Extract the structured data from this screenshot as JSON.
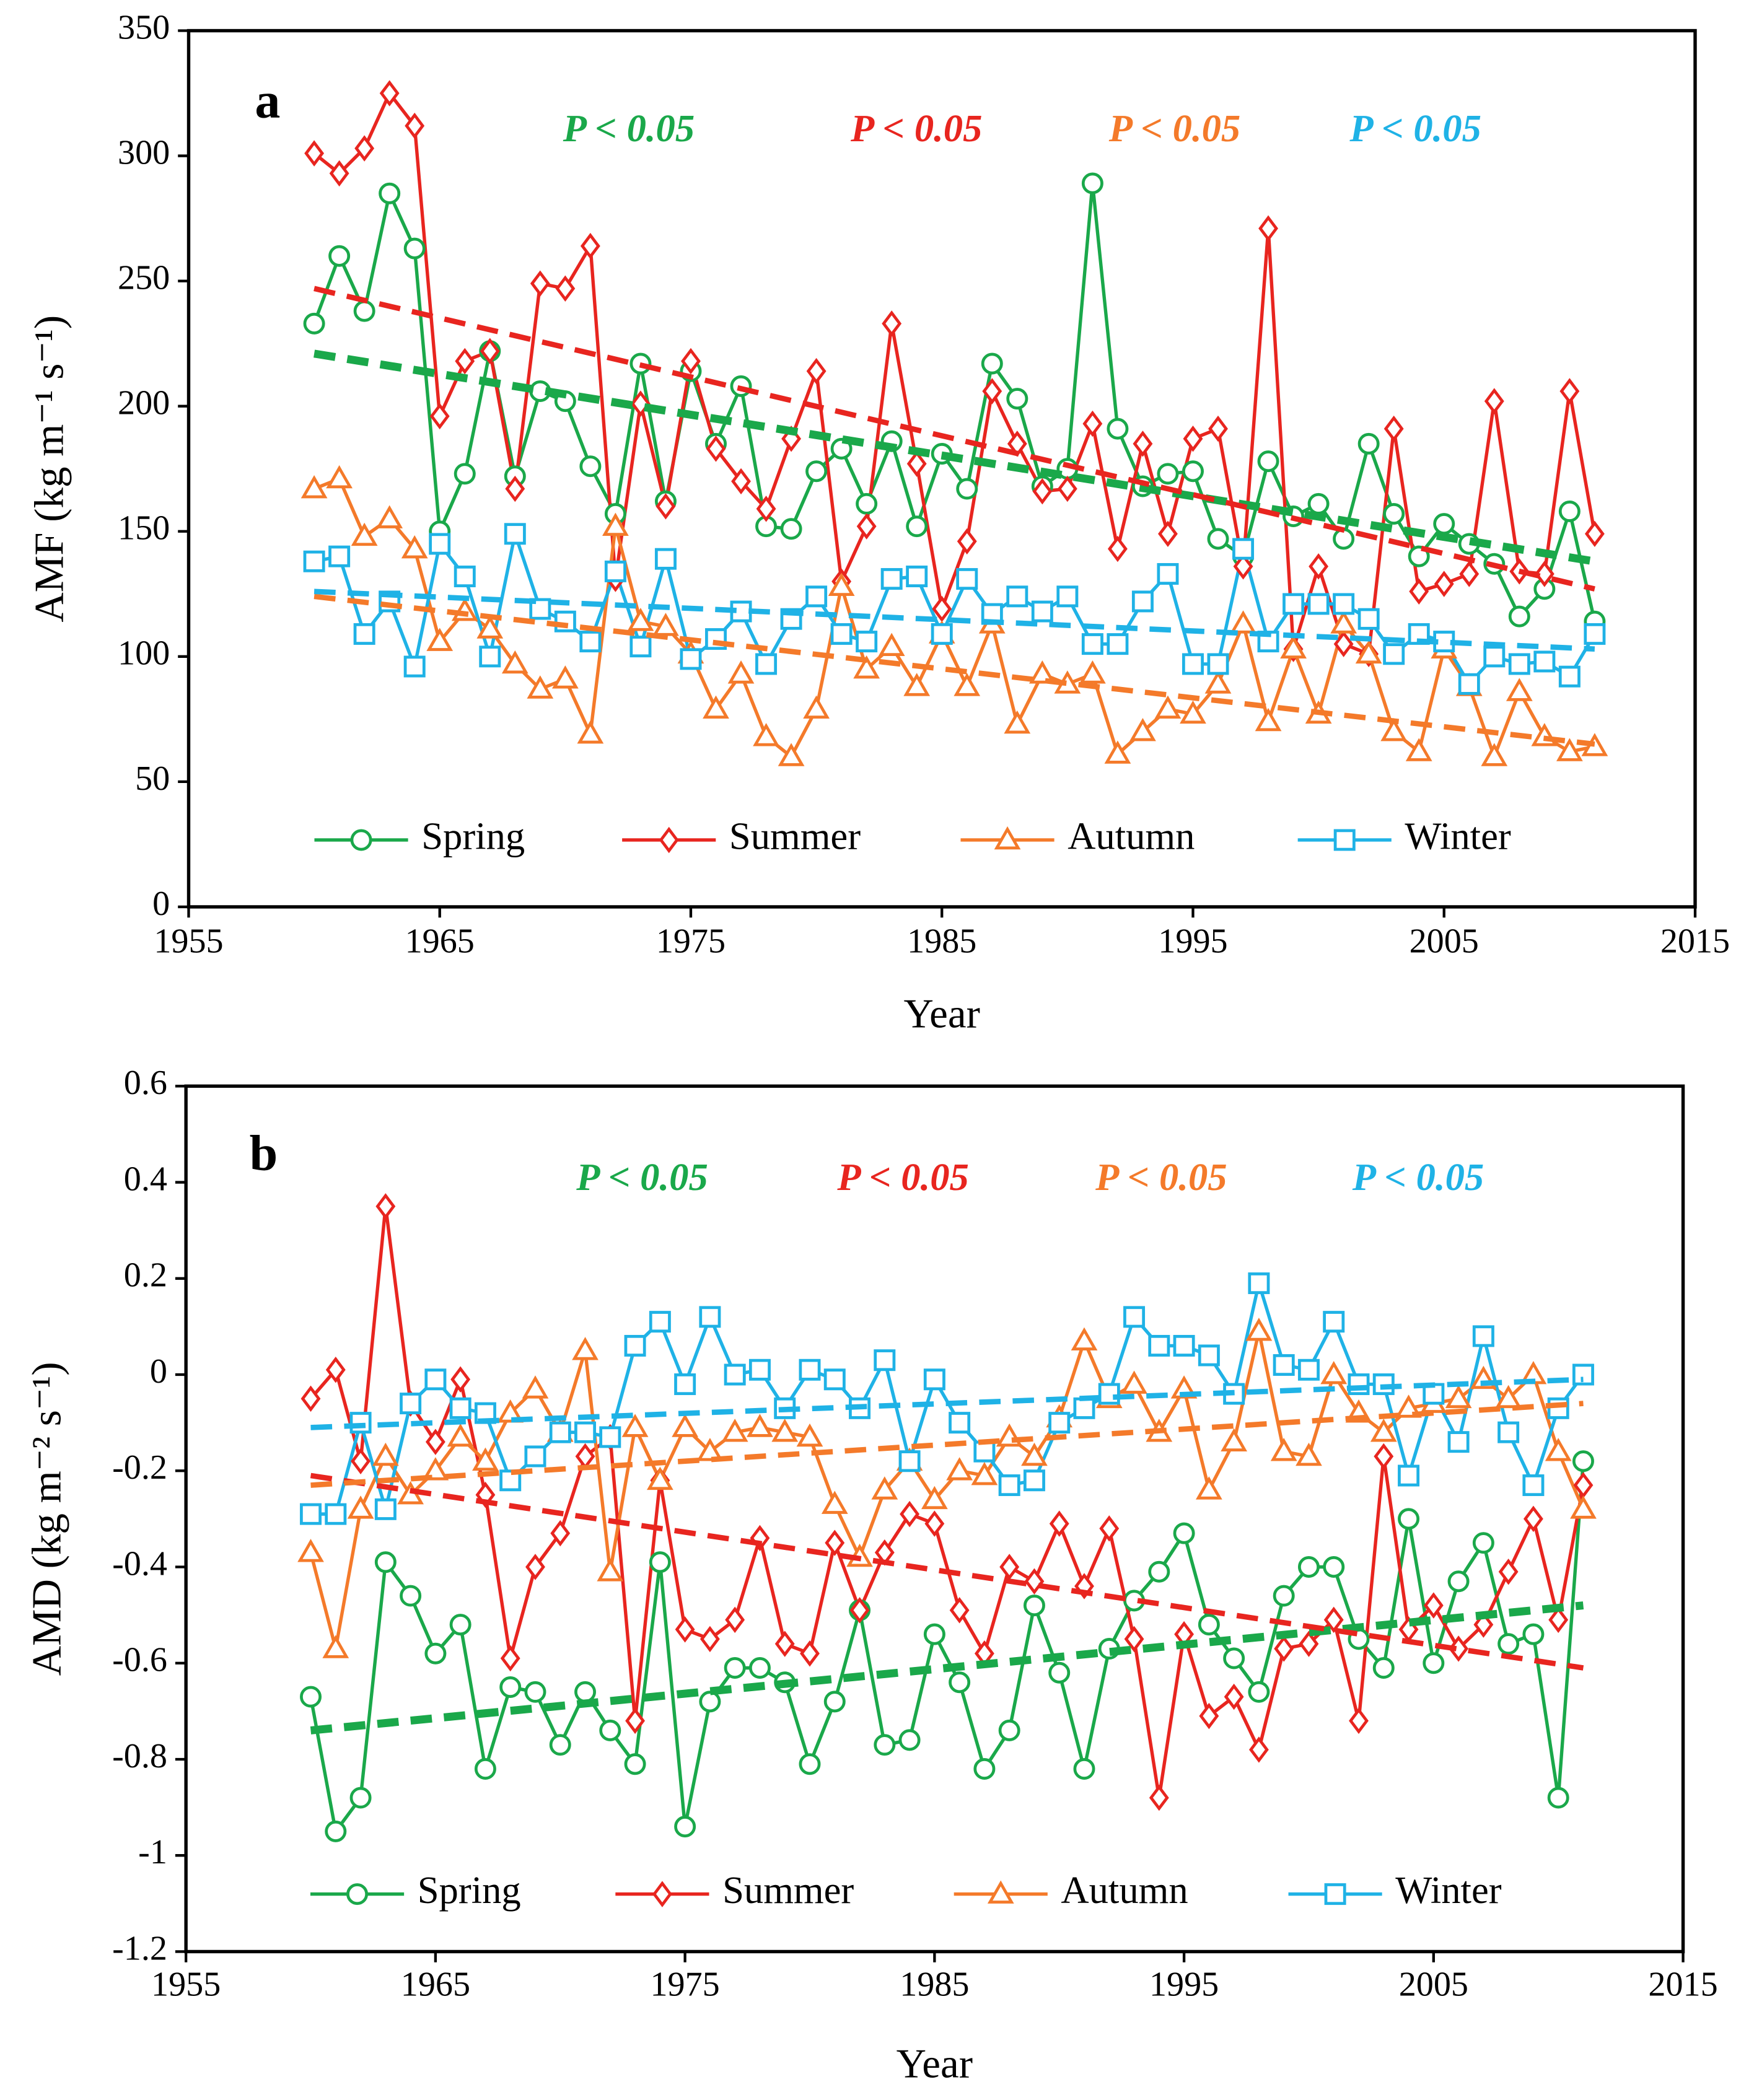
{
  "chart_data": [
    {
      "type": "line",
      "panel": "a",
      "xlabel": "Year",
      "ylabel": "AMF (kg m⁻¹ s⁻¹)",
      "xlim": [
        1955,
        2015
      ],
      "xticks": [
        1955,
        1965,
        1975,
        1985,
        1995,
        2005,
        2015
      ],
      "ylim": [
        0,
        350
      ],
      "yticks": [
        0,
        50,
        100,
        150,
        200,
        250,
        300,
        350
      ],
      "annotations": [
        {
          "text": "P < 0.05",
          "color": "#1aa84a"
        },
        {
          "text": "P < 0.05",
          "color": "#e8251f"
        },
        {
          "text": "P < 0.05",
          "color": "#f47a2a"
        },
        {
          "text": "P < 0.05",
          "color": "#1fb2e6"
        }
      ],
      "x": [
        1960,
        1961,
        1962,
        1963,
        1964,
        1965,
        1966,
        1967,
        1968,
        1969,
        1970,
        1971,
        1972,
        1973,
        1974,
        1975,
        1976,
        1977,
        1978,
        1979,
        1980,
        1981,
        1982,
        1983,
        1984,
        1985,
        1986,
        1987,
        1988,
        1989,
        1990,
        1991,
        1992,
        1993,
        1994,
        1995,
        1996,
        1997,
        1998,
        1999,
        2000,
        2001,
        2002,
        2003,
        2004,
        2005,
        2006,
        2007,
        2008,
        2009,
        2010,
        2011
      ],
      "series": [
        {
          "name": "Spring",
          "color": "#1aa84a",
          "marker": "circle",
          "trend": [
            221,
            138
          ],
          "values": [
            233,
            260,
            238,
            285,
            263,
            150,
            173,
            222,
            172,
            206,
            202,
            176,
            157,
            217,
            162,
            214,
            185,
            208,
            152,
            151,
            174,
            183,
            161,
            186,
            152,
            181,
            167,
            217,
            203,
            168,
            175,
            289,
            191,
            168,
            173,
            174,
            147,
            140,
            178,
            156,
            161,
            147,
            185,
            157,
            140,
            153,
            145,
            137,
            116,
            127,
            158,
            114
          ]
        },
        {
          "name": "Summer",
          "color": "#e8251f",
          "marker": "diamond",
          "trend": [
            247,
            127
          ],
          "values": [
            301,
            293,
            303,
            325,
            312,
            196,
            218,
            222,
            167,
            249,
            247,
            264,
            131,
            201,
            160,
            218,
            183,
            170,
            159,
            187,
            214,
            130,
            152,
            233,
            177,
            119,
            146,
            206,
            185,
            166,
            167,
            193,
            143,
            185,
            149,
            187,
            191,
            136,
            271,
            103,
            136,
            105,
            101,
            191,
            126,
            129,
            133,
            202,
            134,
            133,
            206,
            149
          ]
        },
        {
          "name": "Autumn",
          "color": "#f47a2a",
          "marker": "triangle",
          "trend": [
            124,
            65
          ],
          "values": [
            167,
            171,
            148,
            155,
            143,
            106,
            118,
            111,
            97,
            87,
            91,
            69,
            152,
            114,
            112,
            101,
            79,
            93,
            68,
            60,
            79,
            128,
            95,
            104,
            88,
            109,
            88,
            113,
            73,
            93,
            89,
            93,
            61,
            70,
            79,
            77,
            89,
            113,
            74,
            103,
            77,
            113,
            101,
            70,
            62,
            103,
            88,
            60,
            86,
            68,
            62,
            64
          ]
        },
        {
          "name": "Winter",
          "color": "#1fb2e6",
          "marker": "square",
          "trend": [
            126,
            103
          ],
          "values": [
            138,
            140,
            109,
            122,
            96,
            145,
            132,
            100,
            149,
            119,
            114,
            106,
            134,
            104,
            139,
            99,
            107,
            118,
            97,
            115,
            124,
            109,
            106,
            131,
            132,
            109,
            131,
            117,
            124,
            118,
            124,
            105,
            105,
            122,
            133,
            97,
            97,
            143,
            106,
            121,
            121,
            121,
            115,
            101,
            109,
            106,
            89,
            100,
            97,
            98,
            92,
            109
          ]
        }
      ]
    },
    {
      "type": "line",
      "panel": "b",
      "xlabel": "Year",
      "ylabel": "AMD (kg m⁻² s⁻¹)",
      "xlim": [
        1955,
        2015
      ],
      "xticks": [
        1955,
        1965,
        1975,
        1985,
        1995,
        2005,
        2015
      ],
      "ylim": [
        -1.2,
        0.6
      ],
      "yticks": [
        -1.2,
        -1,
        -0.8,
        -0.6,
        -0.4,
        -0.2,
        0,
        0.2,
        0.4,
        0.6
      ],
      "annotations": [
        {
          "text": "P < 0.05",
          "color": "#1aa84a"
        },
        {
          "text": "P < 0.05",
          "color": "#e8251f"
        },
        {
          "text": "P < 0.05",
          "color": "#f47a2a"
        },
        {
          "text": "P < 0.05",
          "color": "#1fb2e6"
        }
      ],
      "x": [
        1960,
        1961,
        1962,
        1963,
        1964,
        1965,
        1966,
        1967,
        1968,
        1969,
        1970,
        1971,
        1972,
        1973,
        1974,
        1975,
        1976,
        1977,
        1978,
        1979,
        1980,
        1981,
        1982,
        1983,
        1984,
        1985,
        1986,
        1987,
        1988,
        1989,
        1990,
        1991,
        1992,
        1993,
        1994,
        1995,
        1996,
        1997,
        1998,
        1999,
        2000,
        2001,
        2002,
        2003,
        2004,
        2005,
        2006,
        2007,
        2008,
        2009,
        2010,
        2011
      ],
      "series": [
        {
          "name": "Spring",
          "color": "#1aa84a",
          "marker": "circle",
          "trend": [
            -0.74,
            -0.48
          ],
          "values": [
            -0.67,
            -0.95,
            -0.88,
            -0.39,
            -0.46,
            -0.58,
            -0.52,
            -0.82,
            -0.65,
            -0.66,
            -0.77,
            -0.66,
            -0.74,
            -0.81,
            -0.39,
            -0.94,
            -0.68,
            -0.61,
            -0.61,
            -0.64,
            -0.81,
            -0.68,
            -0.49,
            -0.77,
            -0.76,
            -0.54,
            -0.64,
            -0.82,
            -0.74,
            -0.48,
            -0.62,
            -0.82,
            -0.57,
            -0.47,
            -0.41,
            -0.33,
            -0.52,
            -0.59,
            -0.66,
            -0.46,
            -0.4,
            -0.4,
            -0.55,
            -0.61,
            -0.3,
            -0.6,
            -0.43,
            -0.35,
            -0.56,
            -0.54,
            -0.88,
            -0.18
          ]
        },
        {
          "name": "Summer",
          "color": "#e8251f",
          "marker": "diamond",
          "trend": [
            -0.21,
            -0.61
          ],
          "values": [
            -0.05,
            0.01,
            -0.18,
            0.35,
            -0.06,
            -0.14,
            -0.01,
            -0.25,
            -0.59,
            -0.4,
            -0.33,
            -0.17,
            -0.13,
            -0.72,
            -0.22,
            -0.53,
            -0.55,
            -0.51,
            -0.34,
            -0.56,
            -0.58,
            -0.35,
            -0.49,
            -0.37,
            -0.29,
            -0.31,
            -0.49,
            -0.58,
            -0.4,
            -0.43,
            -0.31,
            -0.44,
            -0.32,
            -0.55,
            -0.88,
            -0.54,
            -0.71,
            -0.67,
            -0.78,
            -0.57,
            -0.56,
            -0.51,
            -0.72,
            -0.17,
            -0.53,
            -0.48,
            -0.57,
            -0.52,
            -0.41,
            -0.3,
            -0.51,
            -0.23
          ]
        },
        {
          "name": "Autumn",
          "color": "#f47a2a",
          "marker": "triangle",
          "trend": [
            -0.23,
            -0.06
          ],
          "values": [
            -0.37,
            -0.57,
            -0.28,
            -0.17,
            -0.25,
            -0.2,
            -0.13,
            -0.18,
            -0.08,
            -0.03,
            -0.12,
            0.05,
            -0.41,
            -0.11,
            -0.22,
            -0.11,
            -0.16,
            -0.12,
            -0.11,
            -0.12,
            -0.13,
            -0.27,
            -0.38,
            -0.24,
            -0.18,
            -0.26,
            -0.2,
            -0.21,
            -0.13,
            -0.17,
            -0.09,
            0.07,
            -0.05,
            -0.02,
            -0.12,
            -0.03,
            -0.24,
            -0.14,
            0.09,
            -0.16,
            -0.17,
            0,
            -0.08,
            -0.12,
            -0.07,
            -0.06,
            -0.05,
            -0.01,
            -0.05,
            0,
            -0.16,
            -0.28
          ]
        },
        {
          "name": "Winter",
          "color": "#1fb2e6",
          "marker": "square",
          "trend": [
            -0.11,
            -0.01
          ],
          "values": [
            -0.29,
            -0.29,
            -0.1,
            -0.28,
            -0.06,
            -0.01,
            -0.07,
            -0.08,
            -0.22,
            -0.17,
            -0.12,
            -0.12,
            -0.13,
            0.06,
            0.11,
            -0.02,
            0.12,
            0,
            0.01,
            -0.07,
            0.01,
            -0.01,
            -0.07,
            0.03,
            -0.18,
            -0.01,
            -0.1,
            -0.16,
            -0.23,
            -0.22,
            -0.1,
            -0.07,
            -0.04,
            0.12,
            0.06,
            0.06,
            0.04,
            -0.04,
            0.19,
            0.02,
            0.01,
            0.11,
            -0.02,
            -0.02,
            -0.21,
            -0.04,
            -0.14,
            0.08,
            -0.12,
            -0.23,
            -0.07,
            0
          ]
        }
      ]
    }
  ]
}
